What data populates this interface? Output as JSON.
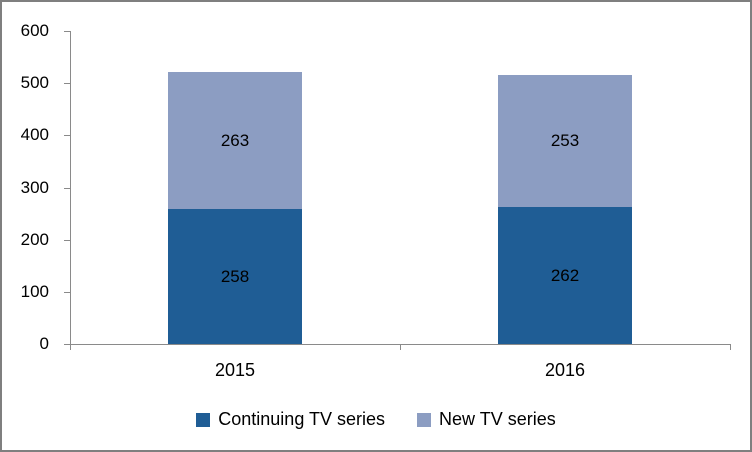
{
  "window": {
    "background": "#FFFFFF",
    "border_color": "#7F7F7F",
    "axis_color": "#8A8A8A",
    "text_color": "#000000"
  },
  "chart_data": {
    "type": "bar",
    "stacked": true,
    "title": "",
    "xlabel": "",
    "ylabel": "",
    "categories": [
      "2015",
      "2016"
    ],
    "series": [
      {
        "name": "Continuing TV series",
        "values": [
          258,
          262
        ],
        "color": "#1F5D95"
      },
      {
        "name": "New TV series",
        "values": [
          263,
          253
        ],
        "color": "#8C9DC2"
      }
    ],
    "stack_totals": [
      521,
      515
    ],
    "ylim": [
      0,
      600
    ],
    "yticks": [
      "0",
      "100",
      "200",
      "300",
      "400",
      "500",
      "600"
    ],
    "grid": false,
    "data_labels": true,
    "legend_position": "bottom"
  }
}
